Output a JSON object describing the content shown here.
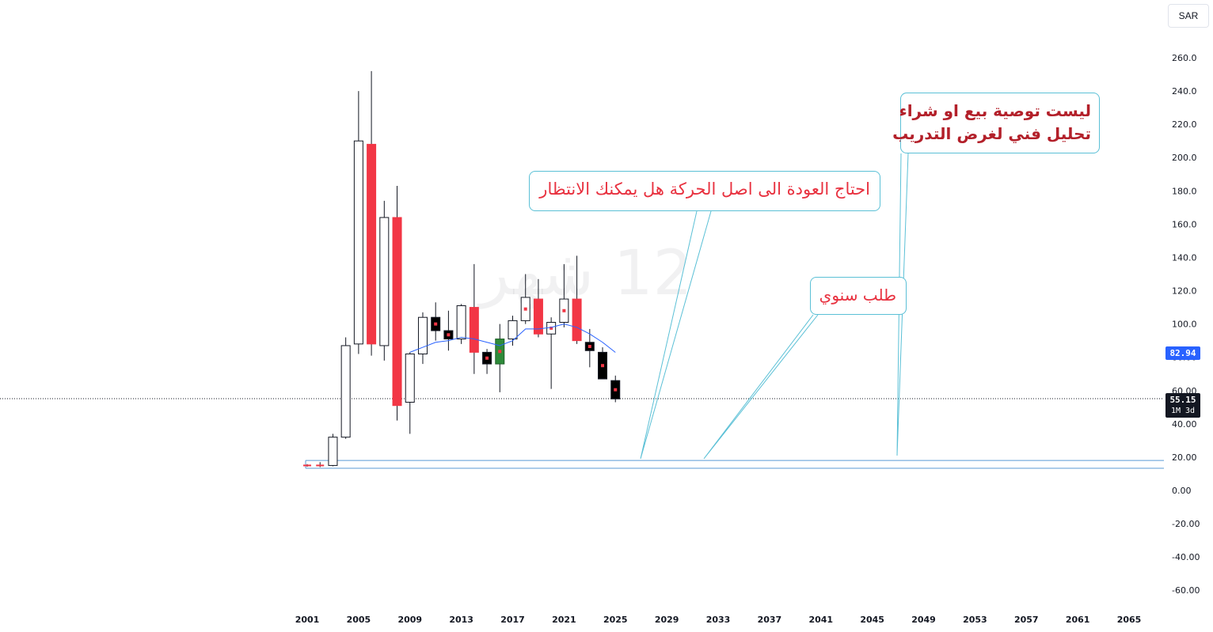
{
  "currency": "SAR",
  "watermark": "12 شهر",
  "annotations": {
    "callout_1": "احتاج العودة الى اصل الحركة هل يمكنك الانتظار",
    "callout_2": "طلب سنوي",
    "callout_3_line1": "ليست توصية بيع او شراء",
    "callout_3_line2": "تحليل فني لغرض التدريب"
  },
  "price_labels": {
    "ma_value": "82.94",
    "last_price": "55.15",
    "countdown": "1M 3d"
  },
  "colors": {
    "up_body": "#ffffff",
    "down_body": "#f23645",
    "black_body": "#000000",
    "green_body": "#2e8b3a",
    "ma_line": "#2962ff",
    "zone_line": "#5b9bd5",
    "callout_border": "#5bc0d6"
  },
  "chart_data": {
    "type": "candlestick",
    "title": "",
    "interval": "12 شهر",
    "currency": "SAR",
    "xlim": [
      2001,
      2067
    ],
    "ylim": [
      -66,
      265
    ],
    "x_ticks": [
      "2001",
      "2005",
      "2009",
      "2013",
      "2017",
      "2021",
      "2025",
      "2029",
      "2033",
      "2037",
      "2041",
      "2045",
      "2049",
      "2053",
      "2057",
      "2061",
      "2065"
    ],
    "y_ticks": [
      "260.0",
      "240.0",
      "220.0",
      "200.0",
      "180.0",
      "160.0",
      "140.0",
      "120.0",
      "100.0",
      "80.00",
      "60.00",
      "40.00",
      "20.00",
      "0.00",
      "-20.00",
      "-40.00",
      "-60.00"
    ],
    "candles": [
      {
        "year": 2001,
        "open": 15.0,
        "high": 15.8,
        "low": 14.2,
        "close": 15.0,
        "style": "doji"
      },
      {
        "year": 2002,
        "open": 15.0,
        "high": 17.0,
        "low": 14.0,
        "close": 15.0,
        "style": "doji"
      },
      {
        "year": 2003,
        "open": 15.0,
        "high": 34.0,
        "low": 14.5,
        "close": 32.0,
        "style": "up"
      },
      {
        "year": 2004,
        "open": 32.0,
        "high": 92.0,
        "low": 31.0,
        "close": 87.0,
        "style": "up"
      },
      {
        "year": 2005,
        "open": 88.0,
        "high": 240.0,
        "low": 82.0,
        "close": 210.0,
        "style": "up"
      },
      {
        "year": 2006,
        "open": 208.0,
        "high": 252.0,
        "low": 81.0,
        "close": 88.0,
        "style": "down"
      },
      {
        "year": 2007,
        "open": 87.0,
        "high": 174.0,
        "low": 78.0,
        "close": 164.0,
        "style": "up"
      },
      {
        "year": 2008,
        "open": 164.0,
        "high": 183.0,
        "low": 42.0,
        "close": 51.0,
        "style": "down"
      },
      {
        "year": 2009,
        "open": 53.0,
        "high": 83.0,
        "low": 34.0,
        "close": 82.0,
        "style": "up"
      },
      {
        "year": 2010,
        "open": 82.0,
        "high": 107.0,
        "low": 76.0,
        "close": 104.0,
        "style": "up"
      },
      {
        "year": 2011,
        "open": 104.0,
        "high": 113.0,
        "low": 90.0,
        "close": 96.0,
        "style": "black"
      },
      {
        "year": 2012,
        "open": 96.0,
        "high": 108.0,
        "low": 84.0,
        "close": 91.0,
        "style": "black"
      },
      {
        "year": 2013,
        "open": 91.0,
        "high": 112.0,
        "low": 88.0,
        "close": 111.0,
        "style": "up"
      },
      {
        "year": 2014,
        "open": 110.0,
        "high": 136.0,
        "low": 70.0,
        "close": 83.0,
        "style": "down"
      },
      {
        "year": 2015,
        "open": 83.0,
        "high": 85.0,
        "low": 70.0,
        "close": 76.0,
        "style": "black"
      },
      {
        "year": 2016,
        "open": 76.0,
        "high": 100.0,
        "low": 59.0,
        "close": 91.0,
        "style": "green"
      },
      {
        "year": 2017,
        "open": 91.0,
        "high": 105.0,
        "low": 87.0,
        "close": 102.0,
        "style": "up"
      },
      {
        "year": 2018,
        "open": 102.0,
        "high": 130.0,
        "low": 100.0,
        "close": 116.0,
        "style": "up"
      },
      {
        "year": 2019,
        "open": 115.0,
        "high": 127.0,
        "low": 92.0,
        "close": 94.0,
        "style": "down"
      },
      {
        "year": 2020,
        "open": 94.0,
        "high": 104.0,
        "low": 61.0,
        "close": 101.0,
        "style": "up"
      },
      {
        "year": 2021,
        "open": 101.0,
        "high": 136.0,
        "low": 98.0,
        "close": 115.0,
        "style": "up"
      },
      {
        "year": 2022,
        "open": 115.0,
        "high": 141.0,
        "low": 88.0,
        "close": 90.0,
        "style": "down"
      },
      {
        "year": 2023,
        "open": 89.0,
        "high": 97.0,
        "low": 74.0,
        "close": 84.0,
        "style": "black"
      },
      {
        "year": 2024,
        "open": 83.0,
        "high": 86.0,
        "low": 67.0,
        "close": 67.0,
        "style": "black"
      },
      {
        "year": 2025,
        "open": 66.0,
        "high": 69.0,
        "low": 53.0,
        "close": 55.0,
        "style": "black"
      }
    ],
    "moving_average": {
      "x": [
        2009,
        2010,
        2011,
        2012,
        2013,
        2014,
        2015,
        2016,
        2017,
        2018,
        2019,
        2020,
        2021,
        2022,
        2023,
        2024,
        2025
      ],
      "y": [
        83,
        86,
        89,
        90,
        92,
        91,
        89,
        87,
        90,
        97,
        97,
        98,
        100,
        98,
        94,
        89,
        82.94
      ]
    },
    "support_zone": [
      13.3,
      18.0
    ],
    "last_price": 55.15
  }
}
